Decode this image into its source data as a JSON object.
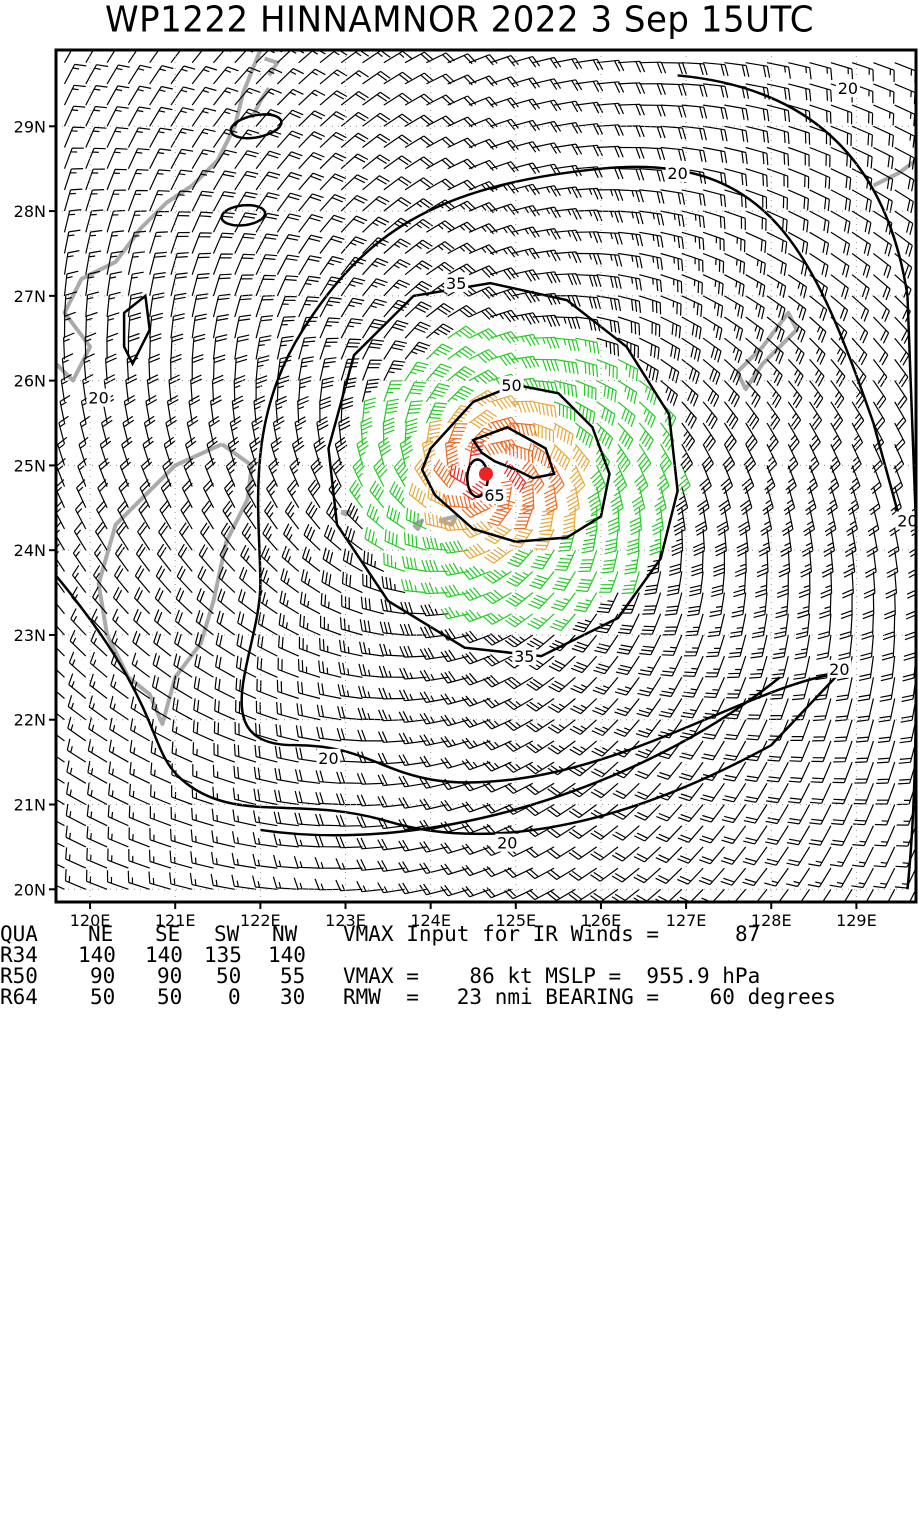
{
  "title": "WP1222  HINNAMNOR 2022  3 Sep 15UTC",
  "chart_data": {
    "type": "wind-field-map",
    "storm_id": "WP1222",
    "storm_name": "HINNAMNOR",
    "year": "2022",
    "date": "3 Sep",
    "time": "15UTC",
    "center": {
      "lon": 124.65,
      "lat": 24.9
    },
    "lon_range": [
      119.6,
      129.7
    ],
    "lat_range": [
      19.85,
      29.9
    ],
    "x_tick_labels": [
      "120E",
      "121E",
      "122E",
      "123E",
      "124E",
      "125E",
      "126E",
      "127E",
      "128E",
      "129E"
    ],
    "x_tick_values": [
      120,
      121,
      122,
      123,
      124,
      125,
      126,
      127,
      128,
      129
    ],
    "y_tick_labels": [
      "20N",
      "21N",
      "22N",
      "23N",
      "24N",
      "25N",
      "26N",
      "27N",
      "28N",
      "29N"
    ],
    "y_tick_values": [
      20,
      21,
      22,
      23,
      24,
      25,
      26,
      27,
      28,
      29
    ],
    "contour_levels": [
      20,
      35,
      50,
      65
    ],
    "contour_labels": [
      {
        "text": "20",
        "lon": 128.9,
        "lat": 29.45
      },
      {
        "text": "20",
        "lon": 126.9,
        "lat": 28.45
      },
      {
        "text": "20",
        "lon": 120.1,
        "lat": 25.8
      },
      {
        "text": "20",
        "lon": 129.6,
        "lat": 24.35
      },
      {
        "text": "20",
        "lon": 128.8,
        "lat": 22.6
      },
      {
        "text": "20",
        "lon": 122.8,
        "lat": 21.55
      },
      {
        "text": "20",
        "lon": 124.9,
        "lat": 20.55
      },
      {
        "text": "35",
        "lon": 124.3,
        "lat": 27.15
      },
      {
        "text": "35",
        "lon": 125.1,
        "lat": 22.75
      },
      {
        "text": "50",
        "lon": 124.95,
        "lat": 25.95
      },
      {
        "text": "65",
        "lon": 124.75,
        "lat": 24.65
      }
    ],
    "barb_colors": {
      "lt34": "#000000",
      "34to50": "#22cc22",
      "50to64": "#e8a838",
      "64plus": "#ee6a20",
      "eyewall": "#ee2222"
    },
    "center_color": "#ee2222",
    "land_color": "#aaaaaa"
  },
  "table": {
    "headers": [
      "QUA",
      "NE",
      "SE",
      "SW",
      "NW"
    ],
    "rows": [
      {
        "label": "R34",
        "values": [
          "140",
          "140",
          "135",
          "140"
        ]
      },
      {
        "label": "R50",
        "values": [
          "90",
          "90",
          "50",
          "55"
        ]
      },
      {
        "label": "R64",
        "values": [
          "50",
          "50",
          "0",
          "30"
        ]
      }
    ],
    "vmax_input_text": "VMAX Input for IR Winds =",
    "vmax_input_value": "87",
    "vmax_line": "VMAX =    86 kt MSLP =  955.9 hPa",
    "rmw_line": "RMW  =   23 nmi BEARING =    60 degrees"
  }
}
